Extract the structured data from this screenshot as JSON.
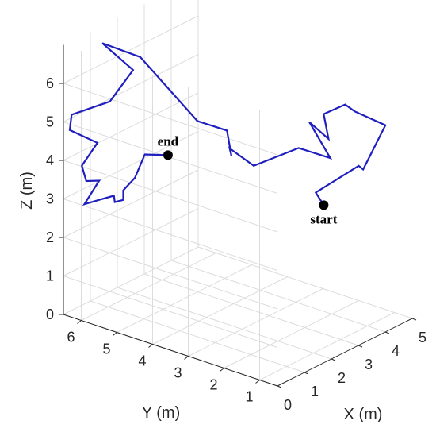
{
  "chart_data": {
    "type": "line",
    "projection": "3d",
    "xlabel": "X (m)",
    "ylabel": "Y (m)",
    "zlabel": "Z (m)",
    "xlim": [
      0,
      5
    ],
    "ylim": [
      0.5,
      6.5
    ],
    "zlim": [
      0,
      7
    ],
    "x_ticks": [
      "0",
      "1",
      "2",
      "3",
      "4",
      "5"
    ],
    "y_ticks": [
      "1",
      "2",
      "3",
      "4",
      "5",
      "6"
    ],
    "z_ticks": [
      "0",
      "1",
      "2",
      "3",
      "4",
      "5",
      "6"
    ],
    "grid": true,
    "line_color": "#1f1fbf",
    "markers": [
      {
        "label": "start",
        "index": 0
      },
      {
        "label": "end",
        "index": 34
      }
    ],
    "series": [
      {
        "x": [
          4.1,
          4.2,
          5.0,
          4.9,
          4.8,
          4.45,
          4.1,
          3.7,
          3.35,
          3.3,
          3.55,
          3.7,
          1.9,
          1.8,
          2.0,
          1.7,
          1.0,
          0.6,
          0.65,
          0.6,
          0.4,
          0.7,
          0.5,
          0.6,
          0.55,
          0.45,
          0.4,
          0.25,
          0.55,
          0.45,
          0.5,
          0.5,
          0.8,
          1.3,
          1.1
        ],
        "y": [
          2.3,
          2.6,
          2.0,
          1.8,
          1.1,
          1.7,
          1.7,
          2.0,
          1.6,
          2.1,
          1.7,
          2.7,
          2.6,
          3.2,
          3.3,
          3.2,
          3.5,
          4.8,
          5.9,
          5.0,
          5.5,
          6.8,
          6.7,
          6.0,
          6.4,
          6.2,
          5.8,
          6.1,
          5.5,
          5.4,
          5.2,
          5.2,
          5.1,
          5.2,
          4.4
        ],
        "z": [
          2.7,
          2.9,
          3.5,
          3.5,
          4.9,
          5.2,
          5.5,
          5.3,
          4.9,
          5.2,
          4.3,
          4.2,
          4.4,
          4.7,
          4.4,
          5.2,
          5.6,
          7.0,
          7.0,
          6.6,
          5.7,
          4.85,
          4.55,
          4.4,
          3.7,
          3.4,
          3.55,
          2.9,
          3.2,
          3.1,
          3.2,
          3.45,
          3.7,
          4.1,
          4.4
        ]
      }
    ]
  }
}
